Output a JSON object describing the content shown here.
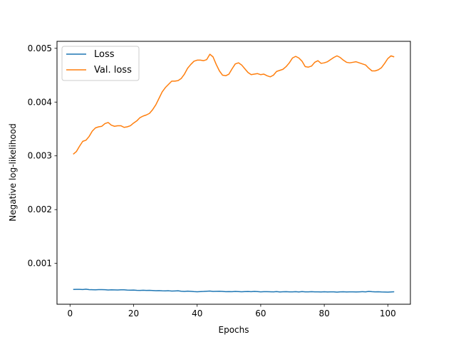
{
  "chart_data": {
    "type": "line",
    "title": "",
    "xlabel": "Epochs",
    "ylabel": "Negative log-likelihood",
    "xlim": [
      -4.1,
      107.1
    ],
    "ylim": [
      0.00024,
      0.00513
    ],
    "xticks": [
      0,
      20,
      40,
      60,
      80,
      100
    ],
    "yticks": [
      0.001,
      0.002,
      0.003,
      0.004,
      0.005
    ],
    "ytick_labels": [
      "0.001",
      "0.002",
      "0.003",
      "0.004",
      "0.005"
    ],
    "grid": false,
    "legend_position": "top-left",
    "series": [
      {
        "name": "Loss",
        "color": "#1f77b4",
        "x": [
          1,
          2,
          3,
          4,
          5,
          6,
          7,
          8,
          9,
          10,
          11,
          12,
          13,
          14,
          15,
          16,
          17,
          18,
          19,
          20,
          21,
          22,
          23,
          24,
          25,
          26,
          27,
          28,
          29,
          30,
          31,
          32,
          33,
          34,
          35,
          36,
          37,
          38,
          39,
          40,
          41,
          42,
          43,
          44,
          45,
          46,
          47,
          48,
          49,
          50,
          51,
          52,
          53,
          54,
          55,
          56,
          57,
          58,
          59,
          60,
          61,
          62,
          63,
          64,
          65,
          66,
          67,
          68,
          69,
          70,
          71,
          72,
          73,
          74,
          75,
          76,
          77,
          78,
          79,
          80,
          81,
          82,
          83,
          84,
          85,
          86,
          87,
          88,
          89,
          90,
          91,
          92,
          93,
          94,
          95,
          96,
          97,
          98,
          99,
          100,
          101,
          102
        ],
        "y": [
          0.000515,
          0.000517,
          0.000516,
          0.000514,
          0.00052,
          0.000512,
          0.00051,
          0.000508,
          0.000511,
          0.000512,
          0.00051,
          0.000505,
          0.000508,
          0.000507,
          0.000505,
          0.000508,
          0.000509,
          0.000504,
          0.000502,
          0.000504,
          0.000498,
          0.000496,
          0.0005,
          0.000497,
          0.000498,
          0.000495,
          0.000492,
          0.000494,
          0.00049,
          0.000488,
          0.000491,
          0.000485,
          0.000487,
          0.00049,
          0.000482,
          0.000478,
          0.000484,
          0.00048,
          0.000475,
          0.000472,
          0.000476,
          0.000478,
          0.000482,
          0.000485,
          0.000478,
          0.00048,
          0.000482,
          0.000479,
          0.000474,
          0.000476,
          0.000473,
          0.000478,
          0.000475,
          0.000472,
          0.000476,
          0.000477,
          0.000474,
          0.000478,
          0.000475,
          0.00047,
          0.000474,
          0.000473,
          0.000472,
          0.00047,
          0.000475,
          0.000469,
          0.000472,
          0.000474,
          0.00047,
          0.000471,
          0.000473,
          0.000469,
          0.000475,
          0.000471,
          0.00047,
          0.000473,
          0.000471,
          0.00047,
          0.000468,
          0.000472,
          0.000469,
          0.000471,
          0.00047,
          0.000466,
          0.00047,
          0.000472,
          0.000469,
          0.000471,
          0.00047,
          0.000468,
          0.000471,
          0.000474,
          0.00047,
          0.000478,
          0.000473,
          0.00047,
          0.000472,
          0.000468,
          0.000467,
          0.000466,
          0.000469,
          0.000472
        ]
      },
      {
        "name": "Val. loss",
        "color": "#ff7f0e",
        "x": [
          1,
          2,
          3,
          4,
          5,
          6,
          7,
          8,
          9,
          10,
          11,
          12,
          13,
          14,
          15,
          16,
          17,
          18,
          19,
          20,
          21,
          22,
          23,
          24,
          25,
          26,
          27,
          28,
          29,
          30,
          31,
          32,
          33,
          34,
          35,
          36,
          37,
          38,
          39,
          40,
          41,
          42,
          43,
          44,
          45,
          46,
          47,
          48,
          49,
          50,
          51,
          52,
          53,
          54,
          55,
          56,
          57,
          58,
          59,
          60,
          61,
          62,
          63,
          64,
          65,
          66,
          67,
          68,
          69,
          70,
          71,
          72,
          73,
          74,
          75,
          76,
          77,
          78,
          79,
          80,
          81,
          82,
          83,
          84,
          85,
          86,
          87,
          88,
          89,
          90,
          91,
          92,
          93,
          94,
          95,
          96,
          97,
          98,
          99,
          100,
          101,
          102
        ],
        "y": [
          0.00303,
          0.00308,
          0.00318,
          0.00327,
          0.00329,
          0.00336,
          0.00346,
          0.00352,
          0.00354,
          0.00355,
          0.0036,
          0.00362,
          0.00357,
          0.00355,
          0.00356,
          0.00356,
          0.00353,
          0.00354,
          0.00356,
          0.00361,
          0.00365,
          0.00371,
          0.00374,
          0.00376,
          0.00379,
          0.00386,
          0.00395,
          0.00407,
          0.00419,
          0.00427,
          0.00433,
          0.00439,
          0.00439,
          0.0044,
          0.00444,
          0.00452,
          0.00463,
          0.0047,
          0.00476,
          0.00478,
          0.00478,
          0.00477,
          0.00479,
          0.00489,
          0.00484,
          0.0047,
          0.00458,
          0.0045,
          0.00449,
          0.00452,
          0.00462,
          0.00471,
          0.00473,
          0.00469,
          0.00462,
          0.00455,
          0.00451,
          0.00452,
          0.00453,
          0.00451,
          0.00452,
          0.00449,
          0.00447,
          0.0045,
          0.00457,
          0.00459,
          0.00461,
          0.00466,
          0.00473,
          0.00482,
          0.00485,
          0.00482,
          0.00476,
          0.00466,
          0.00465,
          0.00467,
          0.00474,
          0.00477,
          0.00472,
          0.00473,
          0.00475,
          0.00479,
          0.00483,
          0.00486,
          0.00483,
          0.00478,
          0.00474,
          0.00473,
          0.00474,
          0.00475,
          0.00473,
          0.00471,
          0.00469,
          0.00463,
          0.00458,
          0.00458,
          0.0046,
          0.00464,
          0.00472,
          0.00481,
          0.00486,
          0.00484
        ]
      }
    ]
  }
}
